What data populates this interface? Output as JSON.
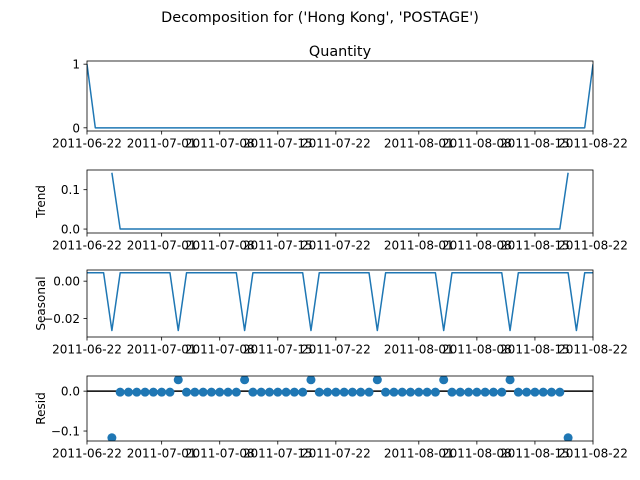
{
  "chart_data": {
    "type": "line",
    "title": "Decomposition for ('Hong Kong', 'POSTAGE')",
    "x_start": "2011-06-22",
    "x_end": "2011-08-22",
    "x_ticks": [
      "2011-06-22",
      "2011-07-01",
      "2011-07-08",
      "2011-07-15",
      "2011-07-22",
      "2011-08-01",
      "2011-08-08",
      "2011-08-15",
      "2011-08-22"
    ],
    "grid": false,
    "panels": [
      {
        "name": "observed",
        "title": "Quantity",
        "ylabel": "",
        "kind": "line",
        "ylim": [
          -0.05,
          1.05
        ],
        "yticks": [
          0,
          1
        ],
        "ytick_labels": [
          "0",
          "1"
        ],
        "dates": [
          "2011-06-22",
          "2011-06-23",
          "2011-08-21",
          "2011-08-22"
        ],
        "values": [
          1,
          0,
          0,
          1
        ]
      },
      {
        "name": "trend",
        "title": "",
        "ylabel": "Trend",
        "kind": "line",
        "ylim": [
          -0.01,
          0.15
        ],
        "yticks": [
          0,
          0.1
        ],
        "ytick_labels": [
          "0.0",
          "0.1"
        ],
        "dates": [
          "2011-06-25",
          "2011-06-26",
          "2011-08-18",
          "2011-08-19"
        ],
        "values": [
          0.143,
          0,
          0,
          0.143
        ]
      },
      {
        "name": "seasonal",
        "title": "",
        "ylabel": "Seasonal",
        "kind": "line",
        "ylim": [
          -0.03,
          0.006
        ],
        "yticks": [
          0,
          -0.02
        ],
        "ytick_labels": [
          "0.00",
          "−0.02"
        ],
        "dates": [
          "2011-06-22",
          "2011-06-23",
          "2011-06-24",
          "2011-06-25",
          "2011-06-26",
          "2011-06-27",
          "2011-06-28",
          "2011-06-29",
          "2011-06-30",
          "2011-07-01",
          "2011-07-02",
          "2011-07-03",
          "2011-07-04",
          "2011-07-05",
          "2011-07-06",
          "2011-07-07",
          "2011-07-08",
          "2011-07-09",
          "2011-07-10",
          "2011-07-11",
          "2011-07-12",
          "2011-07-13",
          "2011-07-14",
          "2011-07-15",
          "2011-07-16",
          "2011-07-17",
          "2011-07-18",
          "2011-07-19",
          "2011-07-20",
          "2011-07-21",
          "2011-07-22",
          "2011-07-23",
          "2011-07-24",
          "2011-07-25",
          "2011-07-26",
          "2011-07-27",
          "2011-07-28",
          "2011-07-29",
          "2011-07-30",
          "2011-07-31",
          "2011-08-01",
          "2011-08-02",
          "2011-08-03",
          "2011-08-04",
          "2011-08-05",
          "2011-08-06",
          "2011-08-07",
          "2011-08-08",
          "2011-08-09",
          "2011-08-10",
          "2011-08-11",
          "2011-08-12",
          "2011-08-13",
          "2011-08-14",
          "2011-08-15",
          "2011-08-16",
          "2011-08-17",
          "2011-08-18",
          "2011-08-19",
          "2011-08-20",
          "2011-08-21",
          "2011-08-22"
        ],
        "values": [
          0.0045,
          0.0045,
          0.0045,
          -0.0265,
          0.0045,
          0.0045,
          0.0045,
          0.0045,
          0.0045,
          0.0045,
          0.0045,
          -0.0265,
          0.0045,
          0.0045,
          0.0045,
          0.0045,
          0.0045,
          0.0045,
          0.0045,
          -0.0265,
          0.0045,
          0.0045,
          0.0045,
          0.0045,
          0.0045,
          0.0045,
          0.0045,
          -0.0265,
          0.0045,
          0.0045,
          0.0045,
          0.0045,
          0.0045,
          0.0045,
          0.0045,
          -0.0265,
          0.0045,
          0.0045,
          0.0045,
          0.0045,
          0.0045,
          0.0045,
          0.0045,
          -0.0265,
          0.0045,
          0.0045,
          0.0045,
          0.0045,
          0.0045,
          0.0045,
          0.0045,
          -0.0265,
          0.0045,
          0.0045,
          0.0045,
          0.0045,
          0.0045,
          0.0045,
          0.0045,
          -0.0265,
          0.0045,
          0.0045
        ]
      },
      {
        "name": "resid",
        "title": "",
        "ylabel": "Resid",
        "kind": "scatter",
        "ylim": [
          -0.125,
          0.038
        ],
        "yticks": [
          0,
          -0.1
        ],
        "ytick_labels": [
          "0.0",
          "−0.1"
        ],
        "baseline": 0,
        "dates": [
          "2011-06-25",
          "2011-06-26",
          "2011-06-27",
          "2011-06-28",
          "2011-06-29",
          "2011-06-30",
          "2011-07-01",
          "2011-07-02",
          "2011-07-03",
          "2011-07-04",
          "2011-07-05",
          "2011-07-06",
          "2011-07-07",
          "2011-07-08",
          "2011-07-09",
          "2011-07-10",
          "2011-07-11",
          "2011-07-12",
          "2011-07-13",
          "2011-07-14",
          "2011-07-15",
          "2011-07-16",
          "2011-07-17",
          "2011-07-18",
          "2011-07-19",
          "2011-07-20",
          "2011-07-21",
          "2011-07-22",
          "2011-07-23",
          "2011-07-24",
          "2011-07-25",
          "2011-07-26",
          "2011-07-27",
          "2011-07-28",
          "2011-07-29",
          "2011-07-30",
          "2011-07-31",
          "2011-08-01",
          "2011-08-02",
          "2011-08-03",
          "2011-08-04",
          "2011-08-05",
          "2011-08-06",
          "2011-08-07",
          "2011-08-08",
          "2011-08-09",
          "2011-08-10",
          "2011-08-11",
          "2011-08-12",
          "2011-08-13",
          "2011-08-14",
          "2011-08-15",
          "2011-08-16",
          "2011-08-17",
          "2011-08-18",
          "2011-08-19"
        ],
        "values": [
          -0.117,
          -0.0025,
          -0.0025,
          -0.0025,
          -0.0025,
          -0.0025,
          -0.0025,
          -0.0025,
          0.0285,
          -0.0025,
          -0.0025,
          -0.0025,
          -0.0025,
          -0.0025,
          -0.0025,
          -0.0025,
          0.0285,
          -0.0025,
          -0.0025,
          -0.0025,
          -0.0025,
          -0.0025,
          -0.0025,
          -0.0025,
          0.0285,
          -0.0025,
          -0.0025,
          -0.0025,
          -0.0025,
          -0.0025,
          -0.0025,
          -0.0025,
          0.0285,
          -0.0025,
          -0.0025,
          -0.0025,
          -0.0025,
          -0.0025,
          -0.0025,
          -0.0025,
          0.0285,
          -0.0025,
          -0.0025,
          -0.0025,
          -0.0025,
          -0.0025,
          -0.0025,
          -0.0025,
          0.0285,
          -0.0025,
          -0.0025,
          -0.0025,
          -0.0025,
          -0.0025,
          -0.0025,
          -0.117
        ]
      }
    ]
  },
  "colors": {
    "series": "#1f77b4",
    "axis": "#000000",
    "baseline": "#000000"
  }
}
